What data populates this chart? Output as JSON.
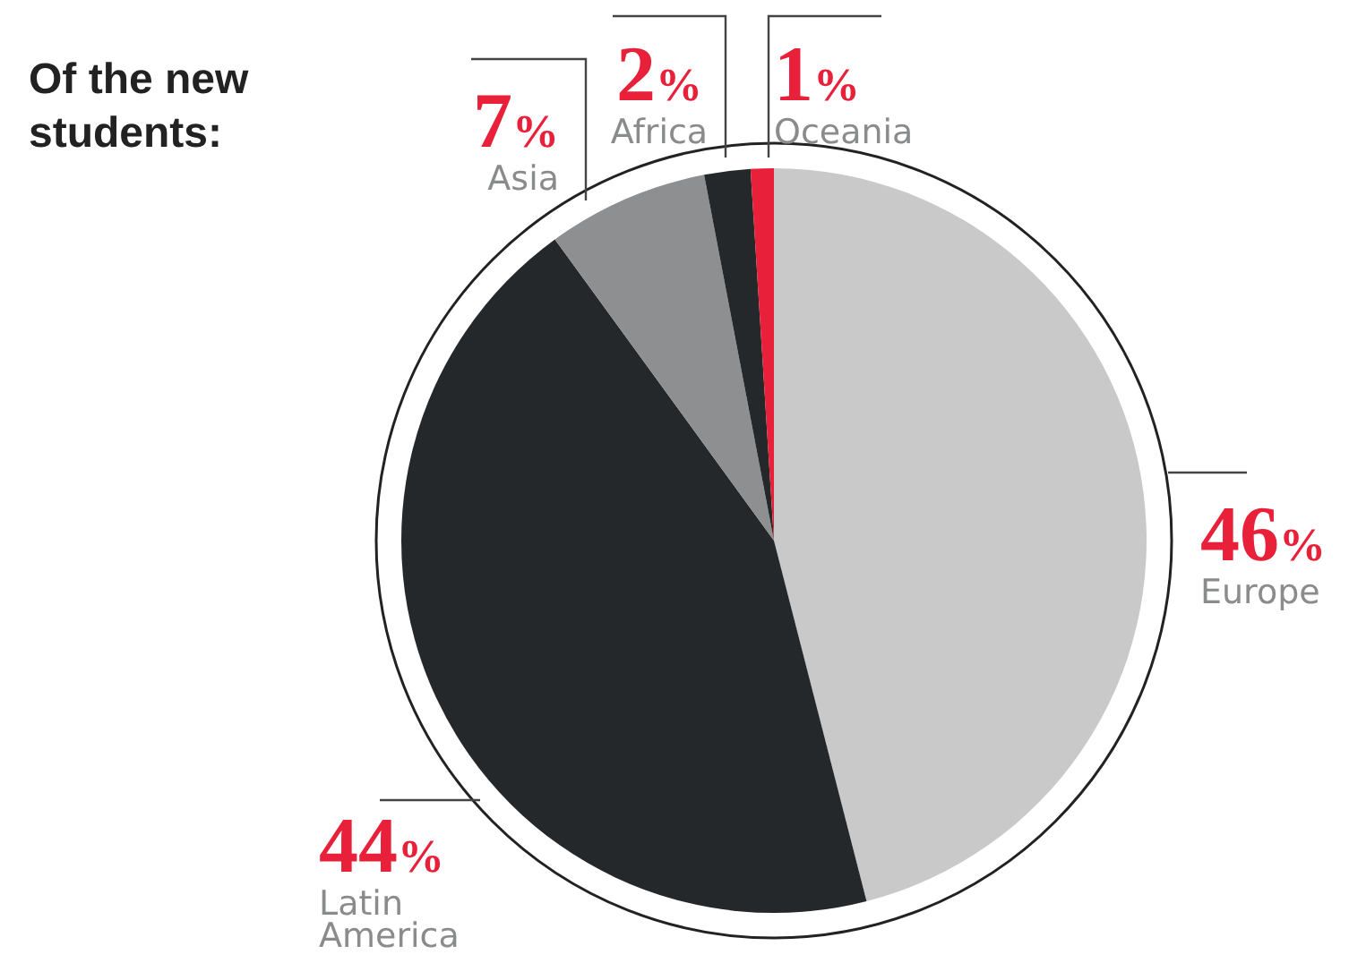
{
  "chart_data": {
    "type": "pie",
    "title": "Of the new students:",
    "categories": [
      "Europe",
      "Latin America",
      "Asia",
      "Africa",
      "Oceania"
    ],
    "values": [
      46,
      44,
      7,
      2,
      1
    ],
    "value_labels": [
      "46%",
      "44%",
      "7%",
      "2%",
      "1%"
    ],
    "colors": [
      "#c9c9c9",
      "#25282b",
      "#8e8f91",
      "#25282b",
      "#e8203a"
    ]
  }
}
